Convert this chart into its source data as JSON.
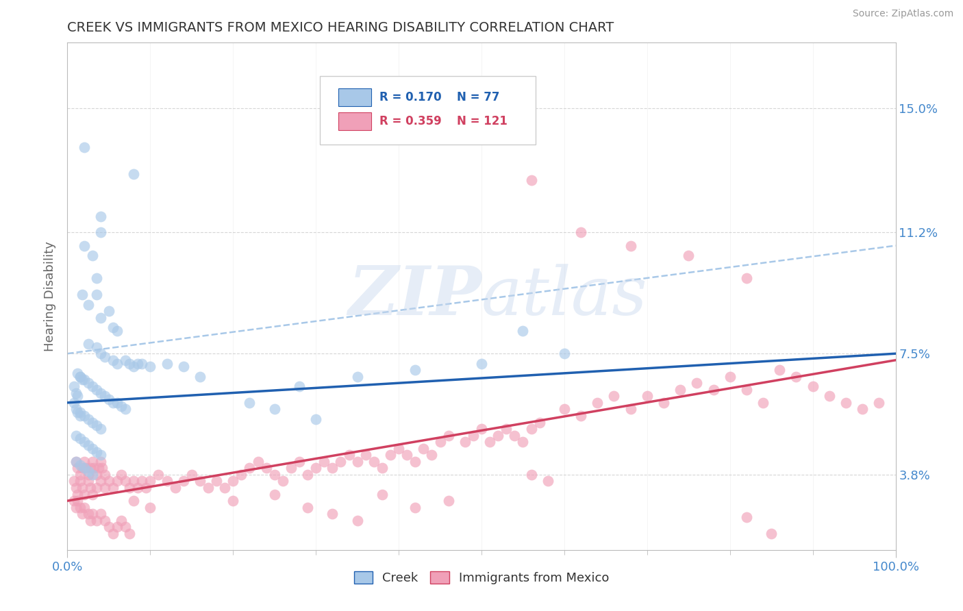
{
  "title": "CREEK VS IMMIGRANTS FROM MEXICO HEARING DISABILITY CORRELATION CHART",
  "source_text": "Source: ZipAtlas.com",
  "ylabel": "Hearing Disability",
  "x_tick_labels": [
    "0.0%",
    "100.0%"
  ],
  "y_tick_labels": [
    "3.8%",
    "7.5%",
    "11.2%",
    "15.0%"
  ],
  "y_tick_values": [
    0.038,
    0.075,
    0.112,
    0.15
  ],
  "xlim": [
    0.0,
    1.0
  ],
  "ylim": [
    0.015,
    0.17
  ],
  "bottom_legend_blue": "Creek",
  "bottom_legend_pink": "Immigrants from Mexico",
  "watermark": "ZIPAtlas",
  "blue_color": "#A8C8E8",
  "blue_line_color": "#2060B0",
  "pink_color": "#F0A0B8",
  "pink_line_color": "#D04060",
  "dashed_line_color": "#A8C8E8",
  "grid_color": "#CCCCCC",
  "axis_label_color": "#4488CC",
  "blue_trend_x": [
    0.0,
    1.0
  ],
  "blue_trend_y": [
    0.06,
    0.075
  ],
  "pink_trend_x": [
    0.0,
    1.0
  ],
  "pink_trend_y": [
    0.03,
    0.073
  ],
  "dashed_trend_x": [
    0.0,
    1.0
  ],
  "dashed_trend_y": [
    0.075,
    0.108
  ],
  "blue_dots": [
    [
      0.02,
      0.138
    ],
    [
      0.08,
      0.13
    ],
    [
      0.04,
      0.117
    ],
    [
      0.04,
      0.112
    ],
    [
      0.03,
      0.105
    ],
    [
      0.035,
      0.098
    ],
    [
      0.035,
      0.093
    ],
    [
      0.025,
      0.09
    ],
    [
      0.05,
      0.088
    ],
    [
      0.04,
      0.086
    ],
    [
      0.055,
      0.083
    ],
    [
      0.06,
      0.082
    ],
    [
      0.025,
      0.078
    ],
    [
      0.035,
      0.077
    ],
    [
      0.04,
      0.075
    ],
    [
      0.045,
      0.074
    ],
    [
      0.055,
      0.073
    ],
    [
      0.06,
      0.072
    ],
    [
      0.07,
      0.073
    ],
    [
      0.075,
      0.072
    ],
    [
      0.08,
      0.071
    ],
    [
      0.085,
      0.072
    ],
    [
      0.09,
      0.072
    ],
    [
      0.1,
      0.071
    ],
    [
      0.12,
      0.072
    ],
    [
      0.14,
      0.071
    ],
    [
      0.015,
      0.068
    ],
    [
      0.02,
      0.067
    ],
    [
      0.025,
      0.066
    ],
    [
      0.03,
      0.065
    ],
    [
      0.035,
      0.064
    ],
    [
      0.04,
      0.063
    ],
    [
      0.045,
      0.062
    ],
    [
      0.05,
      0.061
    ],
    [
      0.055,
      0.06
    ],
    [
      0.06,
      0.06
    ],
    [
      0.065,
      0.059
    ],
    [
      0.07,
      0.058
    ],
    [
      0.015,
      0.057
    ],
    [
      0.02,
      0.056
    ],
    [
      0.025,
      0.055
    ],
    [
      0.03,
      0.054
    ],
    [
      0.035,
      0.053
    ],
    [
      0.04,
      0.052
    ],
    [
      0.01,
      0.05
    ],
    [
      0.015,
      0.049
    ],
    [
      0.02,
      0.048
    ],
    [
      0.025,
      0.047
    ],
    [
      0.03,
      0.046
    ],
    [
      0.035,
      0.045
    ],
    [
      0.04,
      0.044
    ],
    [
      0.01,
      0.042
    ],
    [
      0.015,
      0.041
    ],
    [
      0.02,
      0.04
    ],
    [
      0.025,
      0.039
    ],
    [
      0.03,
      0.038
    ],
    [
      0.008,
      0.06
    ],
    [
      0.01,
      0.058
    ],
    [
      0.012,
      0.057
    ],
    [
      0.015,
      0.056
    ],
    [
      0.008,
      0.065
    ],
    [
      0.01,
      0.063
    ],
    [
      0.012,
      0.062
    ],
    [
      0.012,
      0.069
    ],
    [
      0.015,
      0.068
    ],
    [
      0.018,
      0.067
    ],
    [
      0.16,
      0.068
    ],
    [
      0.28,
      0.065
    ],
    [
      0.35,
      0.068
    ],
    [
      0.42,
      0.07
    ],
    [
      0.5,
      0.072
    ],
    [
      0.6,
      0.075
    ],
    [
      0.22,
      0.06
    ],
    [
      0.25,
      0.058
    ],
    [
      0.3,
      0.055
    ],
    [
      0.55,
      0.082
    ],
    [
      0.02,
      0.108
    ],
    [
      0.018,
      0.093
    ]
  ],
  "pink_dots": [
    [
      0.01,
      0.042
    ],
    [
      0.012,
      0.04
    ],
    [
      0.015,
      0.038
    ],
    [
      0.018,
      0.04
    ],
    [
      0.02,
      0.042
    ],
    [
      0.022,
      0.04
    ],
    [
      0.025,
      0.038
    ],
    [
      0.028,
      0.04
    ],
    [
      0.03,
      0.042
    ],
    [
      0.032,
      0.04
    ],
    [
      0.035,
      0.038
    ],
    [
      0.038,
      0.04
    ],
    [
      0.04,
      0.042
    ],
    [
      0.042,
      0.04
    ],
    [
      0.045,
      0.038
    ],
    [
      0.008,
      0.036
    ],
    [
      0.01,
      0.034
    ],
    [
      0.012,
      0.032
    ],
    [
      0.015,
      0.036
    ],
    [
      0.018,
      0.034
    ],
    [
      0.02,
      0.032
    ],
    [
      0.025,
      0.036
    ],
    [
      0.028,
      0.034
    ],
    [
      0.03,
      0.032
    ],
    [
      0.035,
      0.034
    ],
    [
      0.04,
      0.036
    ],
    [
      0.045,
      0.034
    ],
    [
      0.05,
      0.036
    ],
    [
      0.055,
      0.034
    ],
    [
      0.06,
      0.036
    ],
    [
      0.065,
      0.038
    ],
    [
      0.07,
      0.036
    ],
    [
      0.075,
      0.034
    ],
    [
      0.08,
      0.036
    ],
    [
      0.085,
      0.034
    ],
    [
      0.09,
      0.036
    ],
    [
      0.095,
      0.034
    ],
    [
      0.1,
      0.036
    ],
    [
      0.11,
      0.038
    ],
    [
      0.12,
      0.036
    ],
    [
      0.13,
      0.034
    ],
    [
      0.14,
      0.036
    ],
    [
      0.15,
      0.038
    ],
    [
      0.16,
      0.036
    ],
    [
      0.17,
      0.034
    ],
    [
      0.18,
      0.036
    ],
    [
      0.19,
      0.034
    ],
    [
      0.2,
      0.036
    ],
    [
      0.008,
      0.03
    ],
    [
      0.01,
      0.028
    ],
    [
      0.012,
      0.03
    ],
    [
      0.015,
      0.028
    ],
    [
      0.018,
      0.026
    ],
    [
      0.02,
      0.028
    ],
    [
      0.025,
      0.026
    ],
    [
      0.028,
      0.024
    ],
    [
      0.03,
      0.026
    ],
    [
      0.035,
      0.024
    ],
    [
      0.04,
      0.026
    ],
    [
      0.045,
      0.024
    ],
    [
      0.05,
      0.022
    ],
    [
      0.055,
      0.02
    ],
    [
      0.06,
      0.022
    ],
    [
      0.065,
      0.024
    ],
    [
      0.07,
      0.022
    ],
    [
      0.075,
      0.02
    ],
    [
      0.21,
      0.038
    ],
    [
      0.22,
      0.04
    ],
    [
      0.23,
      0.042
    ],
    [
      0.24,
      0.04
    ],
    [
      0.25,
      0.038
    ],
    [
      0.26,
      0.036
    ],
    [
      0.27,
      0.04
    ],
    [
      0.28,
      0.042
    ],
    [
      0.29,
      0.038
    ],
    [
      0.3,
      0.04
    ],
    [
      0.31,
      0.042
    ],
    [
      0.32,
      0.04
    ],
    [
      0.33,
      0.042
    ],
    [
      0.34,
      0.044
    ],
    [
      0.35,
      0.042
    ],
    [
      0.36,
      0.044
    ],
    [
      0.37,
      0.042
    ],
    [
      0.38,
      0.04
    ],
    [
      0.39,
      0.044
    ],
    [
      0.4,
      0.046
    ],
    [
      0.41,
      0.044
    ],
    [
      0.42,
      0.042
    ],
    [
      0.43,
      0.046
    ],
    [
      0.44,
      0.044
    ],
    [
      0.45,
      0.048
    ],
    [
      0.46,
      0.05
    ],
    [
      0.48,
      0.048
    ],
    [
      0.49,
      0.05
    ],
    [
      0.5,
      0.052
    ],
    [
      0.51,
      0.048
    ],
    [
      0.52,
      0.05
    ],
    [
      0.53,
      0.052
    ],
    [
      0.54,
      0.05
    ],
    [
      0.55,
      0.048
    ],
    [
      0.56,
      0.052
    ],
    [
      0.57,
      0.054
    ],
    [
      0.6,
      0.058
    ],
    [
      0.62,
      0.056
    ],
    [
      0.64,
      0.06
    ],
    [
      0.66,
      0.062
    ],
    [
      0.68,
      0.058
    ],
    [
      0.7,
      0.062
    ],
    [
      0.72,
      0.06
    ],
    [
      0.74,
      0.064
    ],
    [
      0.76,
      0.066
    ],
    [
      0.78,
      0.064
    ],
    [
      0.8,
      0.068
    ],
    [
      0.82,
      0.064
    ],
    [
      0.84,
      0.06
    ],
    [
      0.86,
      0.07
    ],
    [
      0.88,
      0.068
    ],
    [
      0.9,
      0.065
    ],
    [
      0.92,
      0.062
    ],
    [
      0.94,
      0.06
    ],
    [
      0.96,
      0.058
    ],
    [
      0.98,
      0.06
    ],
    [
      0.5,
      0.148
    ],
    [
      0.56,
      0.128
    ],
    [
      0.62,
      0.112
    ],
    [
      0.68,
      0.108
    ],
    [
      0.75,
      0.105
    ],
    [
      0.82,
      0.098
    ],
    [
      0.2,
      0.03
    ],
    [
      0.25,
      0.032
    ],
    [
      0.29,
      0.028
    ],
    [
      0.38,
      0.032
    ],
    [
      0.42,
      0.028
    ],
    [
      0.46,
      0.03
    ],
    [
      0.82,
      0.025
    ],
    [
      0.85,
      0.02
    ],
    [
      0.32,
      0.026
    ],
    [
      0.35,
      0.024
    ],
    [
      0.56,
      0.038
    ],
    [
      0.58,
      0.036
    ],
    [
      0.08,
      0.03
    ],
    [
      0.1,
      0.028
    ]
  ]
}
